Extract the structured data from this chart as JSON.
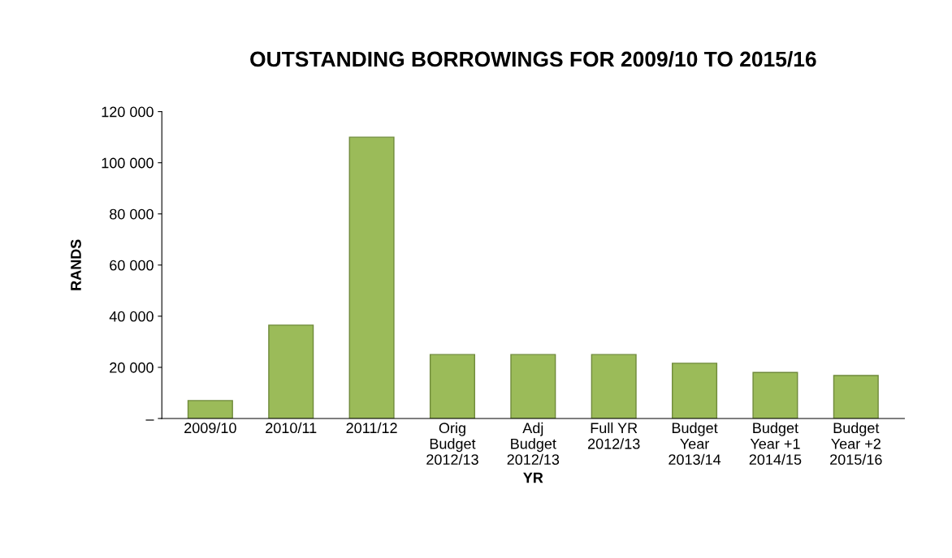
{
  "chart_data": {
    "type": "bar",
    "title": "OUTSTANDING BORROWINGS FOR 2009/10 TO 2015/16",
    "xlabel": "YR",
    "ylabel": "RANDS",
    "categories": [
      "2009/10",
      "2010/11",
      "2011/12",
      "Orig\nBudget\n2012/13",
      "Adj\nBudget\n2012/13",
      "Full YR\n2012/13",
      "Budget\nYear\n2013/14",
      "Budget\nYear +1\n2014/15",
      "Budget\nYear +2\n2015/16"
    ],
    "values": [
      7000,
      36500,
      110000,
      25000,
      25000,
      25000,
      21600,
      18000,
      16800
    ],
    "color": "#9bbb59",
    "ylim": [
      0,
      120000
    ],
    "yticks": [
      {
        "value": 0,
        "label": "–"
      },
      {
        "value": 20000,
        "label": "20 000"
      },
      {
        "value": 40000,
        "label": "40 000"
      },
      {
        "value": 60000,
        "label": "60 000"
      },
      {
        "value": 80000,
        "label": "80 000"
      },
      {
        "value": 100000,
        "label": "100 000"
      },
      {
        "value": 120000,
        "label": "120 000"
      }
    ],
    "grid": false,
    "legend": false
  }
}
